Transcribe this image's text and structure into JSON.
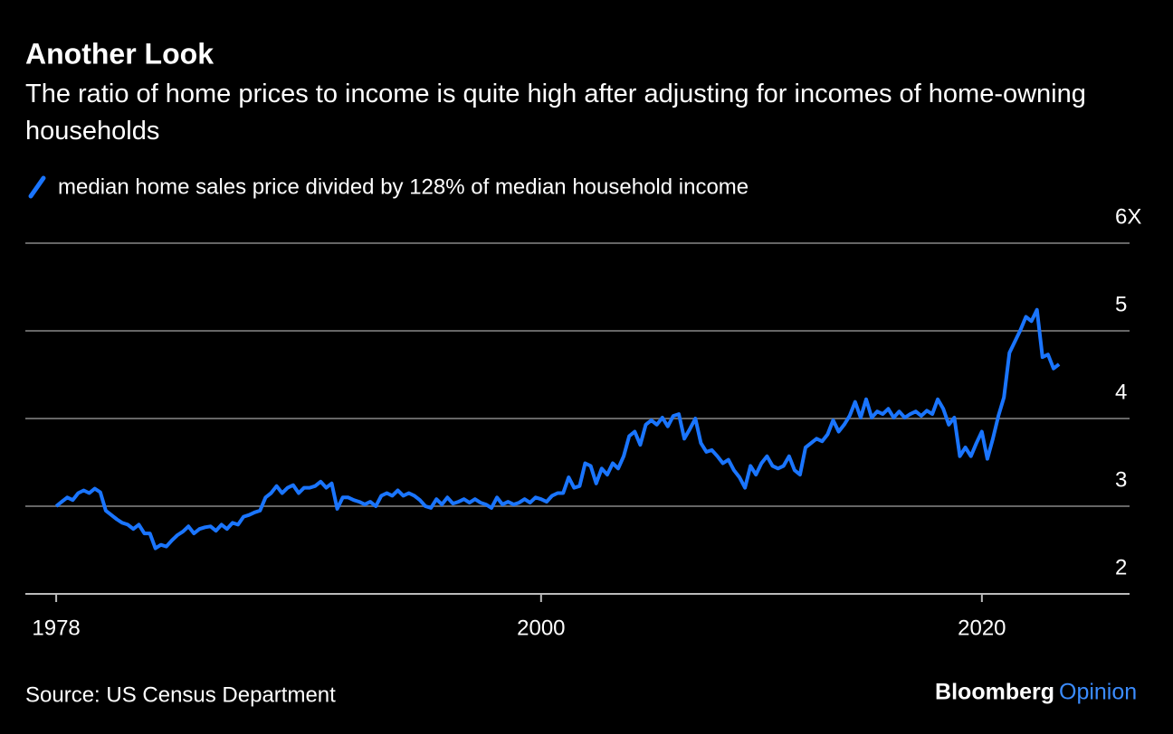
{
  "chart_data": {
    "type": "line",
    "title": "Another Look",
    "subtitle": "The ratio of home prices to income is quite high after adjusting for incomes of home-owning households",
    "source": "Source: US Census Department",
    "brand": "Bloomberg",
    "brand_section": "Opinion",
    "x": [
      1978,
      1978.25,
      1978.5,
      1978.75,
      1979,
      1979.25,
      1979.5,
      1979.75,
      1980,
      1980.25,
      1980.5,
      1980.75,
      1981,
      1981.25,
      1981.5,
      1981.75,
      1982,
      1982.25,
      1982.5,
      1982.75,
      1983,
      1983.25,
      1983.5,
      1983.75,
      1984,
      1984.25,
      1984.5,
      1984.75,
      1985,
      1985.25,
      1985.5,
      1985.75,
      1986,
      1986.25,
      1986.5,
      1986.75,
      1987,
      1987.25,
      1987.5,
      1987.75,
      1988,
      1988.25,
      1988.5,
      1988.75,
      1989,
      1989.25,
      1989.5,
      1989.75,
      1990,
      1990.25,
      1990.5,
      1990.75,
      1991,
      1991.25,
      1991.5,
      1991.75,
      1992,
      1992.25,
      1992.5,
      1992.75,
      1993,
      1993.25,
      1993.5,
      1993.75,
      1994,
      1994.25,
      1994.5,
      1994.75,
      1995,
      1995.25,
      1995.5,
      1995.75,
      1996,
      1996.25,
      1996.5,
      1996.75,
      1997,
      1997.25,
      1997.5,
      1997.75,
      1998,
      1998.25,
      1998.5,
      1998.75,
      1999,
      1999.25,
      1999.5,
      1999.75,
      2000,
      2000.25,
      2000.5,
      2000.75,
      2001,
      2001.25,
      2001.5,
      2001.75,
      2002,
      2002.25,
      2002.5,
      2002.75,
      2003,
      2003.25,
      2003.5,
      2003.75,
      2004,
      2004.25,
      2004.5,
      2004.75,
      2005,
      2005.25,
      2005.5,
      2005.75,
      2006,
      2006.25,
      2006.5,
      2006.75,
      2007,
      2007.25,
      2007.5,
      2007.75,
      2008,
      2008.25,
      2008.5,
      2008.75,
      2009,
      2009.25,
      2009.5,
      2009.75,
      2010,
      2010.25,
      2010.5,
      2010.75,
      2011,
      2011.25,
      2011.5,
      2011.75,
      2012,
      2012.25,
      2012.5,
      2012.75,
      2013,
      2013.25,
      2013.5,
      2013.75,
      2014,
      2014.25,
      2014.5,
      2014.75,
      2015,
      2015.25,
      2015.5,
      2015.75,
      2016,
      2016.25,
      2016.5,
      2016.75,
      2017,
      2017.25,
      2017.5,
      2017.75,
      2018,
      2018.25,
      2018.5,
      2018.75,
      2019,
      2019.25,
      2019.5,
      2019.75,
      2020,
      2020.25,
      2020.5,
      2020.75,
      2021,
      2021.25,
      2021.5,
      2021.75,
      2022,
      2022.25,
      2022.5,
      2022.75,
      2023,
      2023.25,
      2023.5
    ],
    "series": [
      {
        "name": "median home sales price divided by 128% of median household income",
        "color": "#1a75ff",
        "values": [
          3.0,
          3.05,
          3.1,
          3.07,
          3.15,
          3.18,
          3.15,
          3.2,
          3.16,
          2.95,
          2.9,
          2.85,
          2.81,
          2.79,
          2.74,
          2.79,
          2.69,
          2.69,
          2.52,
          2.56,
          2.54,
          2.61,
          2.67,
          2.71,
          2.77,
          2.69,
          2.74,
          2.76,
          2.77,
          2.72,
          2.79,
          2.74,
          2.81,
          2.79,
          2.88,
          2.9,
          2.93,
          2.95,
          3.1,
          3.15,
          3.23,
          3.15,
          3.21,
          3.24,
          3.15,
          3.21,
          3.21,
          3.23,
          3.28,
          3.21,
          3.26,
          2.97,
          3.1,
          3.1,
          3.07,
          3.05,
          3.02,
          3.05,
          3.0,
          3.12,
          3.15,
          3.12,
          3.18,
          3.12,
          3.15,
          3.12,
          3.07,
          3.0,
          2.98,
          3.08,
          3.02,
          3.1,
          3.03,
          3.05,
          3.08,
          3.04,
          3.08,
          3.04,
          3.02,
          2.98,
          3.1,
          3.02,
          3.05,
          3.02,
          3.04,
          3.08,
          3.04,
          3.1,
          3.08,
          3.05,
          3.12,
          3.15,
          3.15,
          3.33,
          3.21,
          3.23,
          3.49,
          3.46,
          3.26,
          3.43,
          3.36,
          3.49,
          3.43,
          3.57,
          3.8,
          3.85,
          3.7,
          3.93,
          3.98,
          3.93,
          4.01,
          3.91,
          4.03,
          4.05,
          3.77,
          3.88,
          4.0,
          3.72,
          3.62,
          3.64,
          3.57,
          3.49,
          3.53,
          3.41,
          3.33,
          3.21,
          3.46,
          3.36,
          3.49,
          3.57,
          3.46,
          3.43,
          3.46,
          3.57,
          3.41,
          3.36,
          3.67,
          3.72,
          3.77,
          3.74,
          3.82,
          3.98,
          3.85,
          3.93,
          4.03,
          4.19,
          4.01,
          4.22,
          4.01,
          4.08,
          4.05,
          4.11,
          4.01,
          4.08,
          4.01,
          4.05,
          4.08,
          4.03,
          4.09,
          4.05,
          4.22,
          4.11,
          3.93,
          4.01,
          3.57,
          3.67,
          3.57,
          3.72,
          3.85,
          3.54,
          3.77,
          4.03,
          4.24,
          4.75,
          4.88,
          5.01,
          5.16,
          5.11,
          5.24,
          4.7,
          4.73,
          4.57,
          4.62
        ]
      }
    ],
    "xlim": [
      1976.6,
      2026.7
    ],
    "xticks": [
      1978,
      2000,
      2020
    ],
    "ylim": [
      2,
      6
    ],
    "yticks": [
      2,
      3,
      4,
      5,
      {
        "value": 6,
        "label": "6X"
      }
    ],
    "grid": true
  }
}
